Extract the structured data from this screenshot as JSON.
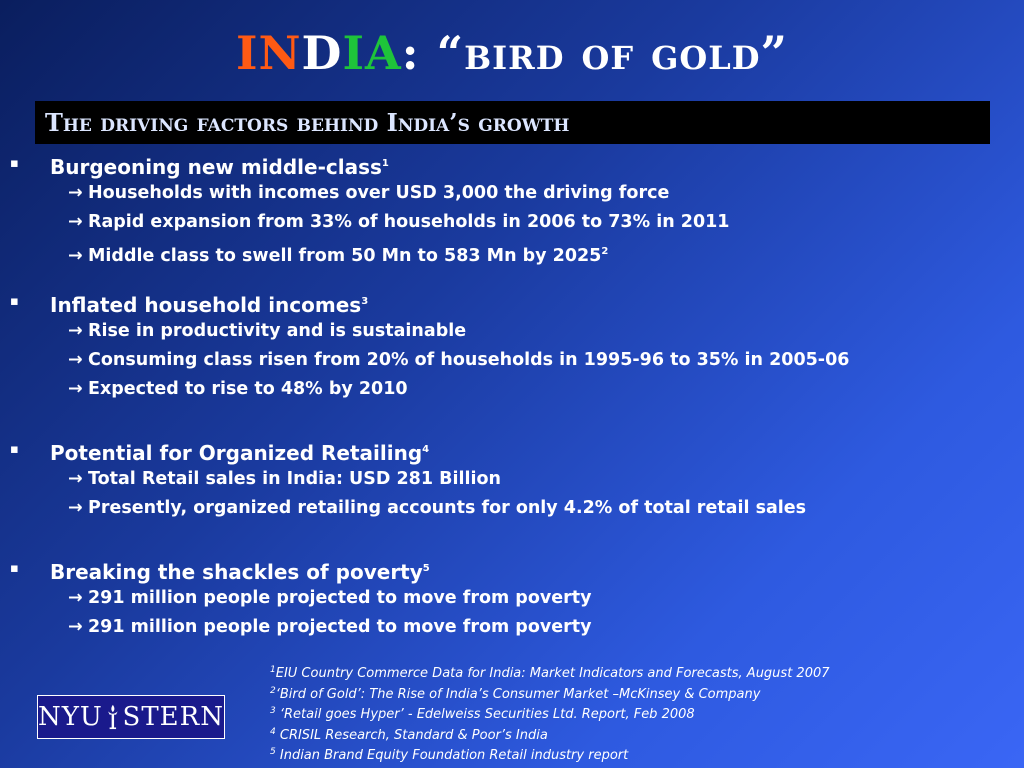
{
  "title": {
    "part_in": "IN",
    "part_d": "D",
    "part_ia": "IA",
    "rest": ": “bird of gold”",
    "colors": {
      "in": "#ff5a14",
      "d": "#ffffff",
      "ia": "#1ec43a"
    }
  },
  "subtitle": "The driving factors behind India’s growth",
  "sections": [
    {
      "heading": "Burgeoning new middle-class",
      "sup": "1",
      "points": [
        {
          "text": "Households with incomes over USD 3,000 the driving force",
          "sup": ""
        },
        {
          "text": "Rapid expansion from 33% of households in 2006 to 73% in 2011",
          "sup": ""
        },
        {
          "text": "Middle class to swell from 50 Mn to 583 Mn by 2025",
          "sup": "2"
        }
      ]
    },
    {
      "heading": "Inflated household incomes",
      "sup": "3",
      "points": [
        {
          "text": "Rise in productivity and is sustainable"
        },
        {
          "text": "Consuming class risen from 20% of households in 1995-96 to 35% in 2005-06"
        },
        {
          "text": "Expected to rise to 48% by 2010"
        }
      ]
    },
    {
      "heading": "Potential for Organized Retailing",
      "sup": "4",
      "points": [
        {
          "text": "Total Retail sales in India: USD 281 Billion"
        },
        {
          "text": "Presently, organized retailing accounts for only 4.2% of total retail sales"
        }
      ]
    },
    {
      "heading": "Breaking the shackles of poverty",
      "sup": "5",
      "points": [
        {
          "text": "291 million people projected to move from poverty"
        },
        {
          "text": "291 million people projected to move from poverty"
        }
      ]
    }
  ],
  "footnotes": [
    {
      "num": "1",
      "text": "EIU Country Commerce Data for India: Market Indicators and Forecasts, August 2007"
    },
    {
      "num": "2",
      "text": "‘Bird of Gold’: The Rise of India’s Consumer Market –McKinsey & Company"
    },
    {
      "num": "3",
      "text": " ‘Retail goes Hyper’ - Edelweiss Securities Ltd. Report, Feb 2008"
    },
    {
      "num": "4",
      "text": " CRISIL Research, Standard & Poor’s India"
    },
    {
      "num": "5",
      "text": " Indian Brand Equity Foundation Retail industry report"
    }
  ],
  "logo": {
    "left": "NYU",
    "right": "STERN",
    "icon": "torch-icon"
  },
  "bullet_glyph": "▪",
  "arrow_glyph": "→"
}
